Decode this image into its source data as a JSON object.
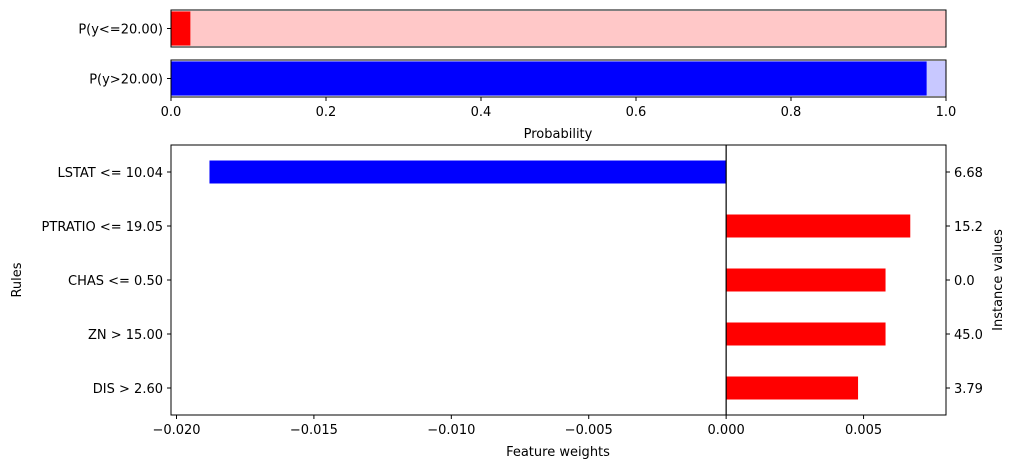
{
  "chart_data": [
    {
      "type": "bar",
      "orientation": "horizontal",
      "xlabel": "Probability",
      "xlim": [
        0,
        1
      ],
      "xticks": [
        "0.0",
        "0.2",
        "0.4",
        "0.6",
        "0.8",
        "1.0"
      ],
      "tick_values": [
        0,
        0.2,
        0.4,
        0.6,
        0.8,
        1.0
      ],
      "panels": [
        {
          "label": "P(y<=20.00)",
          "value": 0.025,
          "fill_color": "#ff0000",
          "band_color": "#ffc8c8"
        },
        {
          "label": "P(y>20.00)",
          "value": 0.975,
          "fill_color": "#0000ff",
          "band_color": "#c8c8ff"
        }
      ]
    },
    {
      "type": "bar",
      "orientation": "horizontal",
      "xlabel": "Feature weights",
      "ylabel": "Rules",
      "ylabel_right": "Instance values",
      "xlim": [
        -0.0202,
        0.008
      ],
      "xticks": [
        "−0.020",
        "−0.015",
        "−0.010",
        "−0.005",
        "0.000",
        "0.005"
      ],
      "tick_values": [
        -0.02,
        -0.015,
        -0.01,
        -0.005,
        0.0,
        0.005
      ],
      "zero_line": true,
      "positive_color": "#ff0000",
      "negative_color": "#0000ff",
      "categories": [
        "LSTAT <= 10.04",
        "PTRATIO <= 19.05",
        "CHAS <= 0.50",
        "ZN > 15.00",
        "DIS > 2.60"
      ],
      "values": [
        -0.0188,
        0.0067,
        0.0058,
        0.0058,
        0.0048
      ],
      "instance_values": [
        "6.68",
        "15.2",
        "0.0",
        "45.0",
        "3.79"
      ]
    }
  ]
}
